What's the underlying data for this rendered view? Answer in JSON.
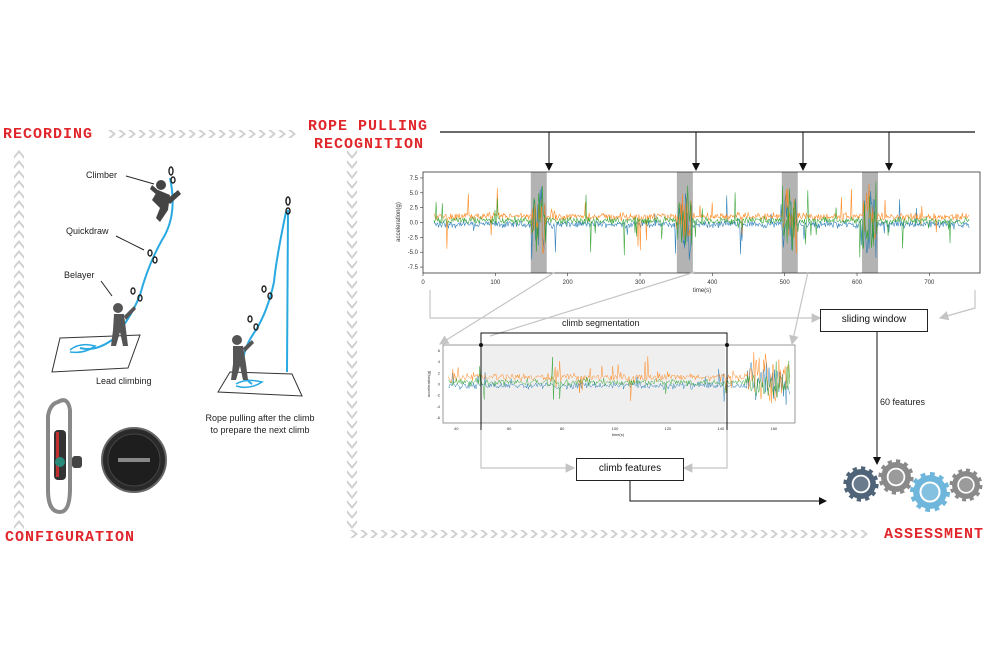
{
  "titles": {
    "recording": "RECORDING",
    "rope_pulling_line1": "ROPE PULLING",
    "rope_pulling_line2": "RECOGNITION",
    "configuration": "CONFIGURATION",
    "assessment": "ASSESSMENT"
  },
  "left_panel": {
    "climber": "Climber",
    "quickdraw": "Quickdraw",
    "belayer": "Belayer",
    "lead_climbing": "Lead climbing",
    "rope_caption_line1": "Rope pulling after the climb",
    "rope_caption_line2": "to prepare the next climb"
  },
  "pipeline": {
    "climb_segmentation": "climb segmentation",
    "sliding_window": "sliding window",
    "features_60": "60 features",
    "climb_features": "climb features"
  },
  "colors": {
    "title_red": "#e0262b",
    "rope_blue": "#29a9e1",
    "series_blue": "#1f77b4",
    "series_orange": "#ff7f0e",
    "series_green": "#2ca02c",
    "highlight_gray": "#a0a0a0",
    "gear_dark": "#4f6478",
    "gear_gray": "#8a8a8a",
    "gear_light": "#6fb6dc"
  },
  "chart_data": [
    {
      "type": "line",
      "xlabel": "time(s)",
      "ylabel": "acceleration(g)",
      "xticks": [
        0,
        100,
        200,
        300,
        400,
        500,
        600,
        700
      ],
      "yticks": [
        7.5,
        5.0,
        2.5,
        0.0,
        -2.5,
        -5.0,
        -7.5
      ],
      "xlim": [
        0,
        770
      ],
      "ylim": [
        -8.5,
        8.5
      ],
      "highlight_x": [
        160,
        362,
        507,
        618
      ],
      "series_colors": [
        "#1f77b4",
        "#ff7f0e",
        "#2ca02c"
      ]
    },
    {
      "type": "line",
      "xlabel": "time(s)",
      "ylabel": "acceleration(g)",
      "xticks": [
        40,
        60,
        80,
        100,
        120,
        140,
        160
      ],
      "yticks": [
        6,
        4,
        2,
        0,
        -2,
        -4,
        -6
      ],
      "xlim": [
        35,
        168
      ],
      "ylim": [
        -7,
        7
      ]
    }
  ]
}
